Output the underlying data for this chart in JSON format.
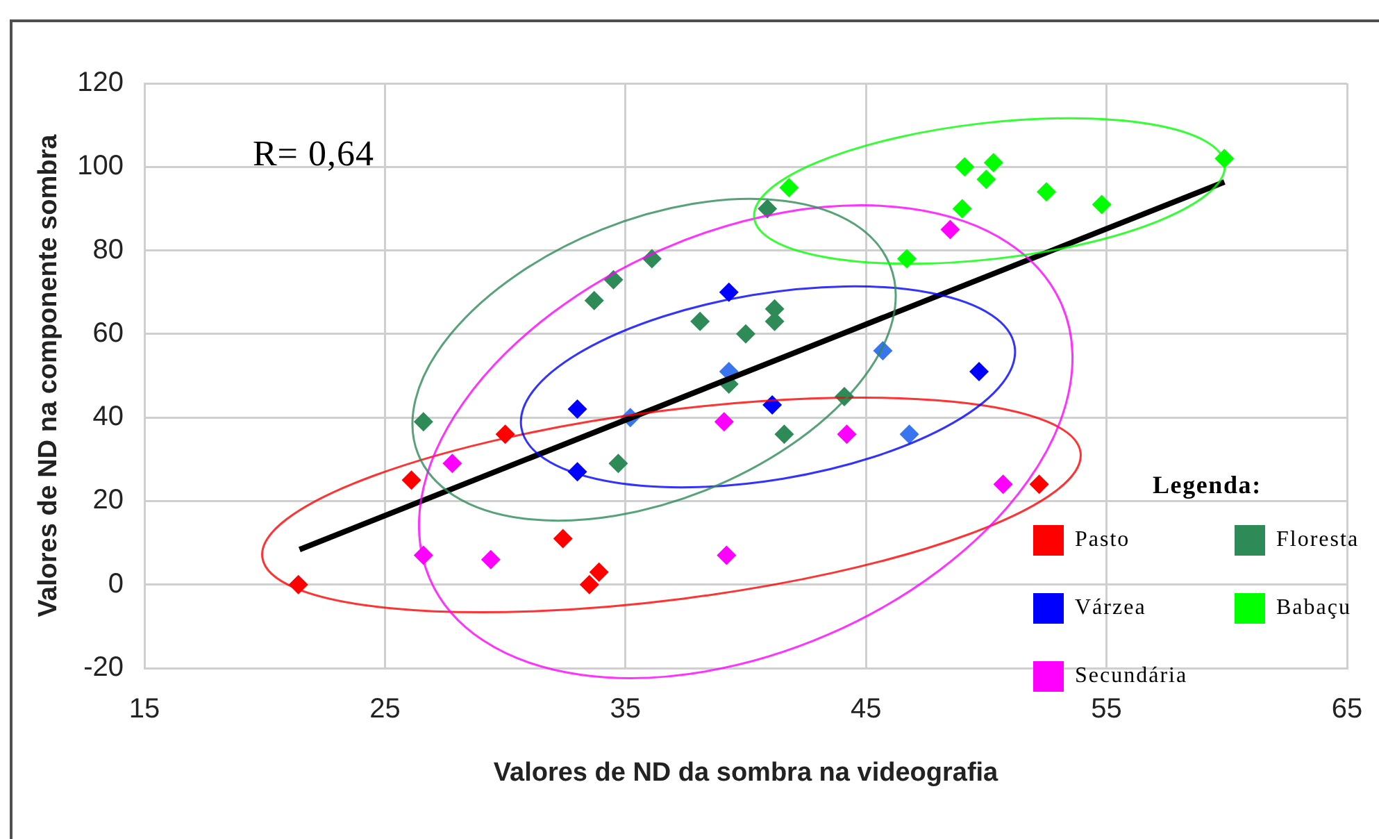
{
  "chart_data": {
    "type": "scatter",
    "xlabel": "Valores de ND da sombra na videografia",
    "ylabel": "Valores de ND na componente sombra",
    "xlim": [
      15,
      65
    ],
    "xticks": [
      15,
      25,
      35,
      45,
      55,
      65
    ],
    "ylim": [
      -20,
      120
    ],
    "yticks": [
      -20,
      0,
      20,
      40,
      60,
      80,
      100,
      120
    ],
    "grid": true,
    "legend": "bottom right",
    "legend_title": "Legenda:",
    "marker": "diamond",
    "annotations": [
      "R= 0,64"
    ],
    "series": [
      {
        "name": "Pasto",
        "color": "#ff0000",
        "x": [
          21.4,
          26.1,
          30.0,
          32.4,
          33.9,
          33.5,
          52.2
        ],
        "values": [
          0,
          25,
          36,
          11,
          3,
          0,
          24
        ]
      },
      {
        "name": "Várzea",
        "color": "#0000ff",
        "colors": [
          "#0000ff",
          "#0000ff",
          "#3a75f0",
          "#3a75f0",
          "#0000ff",
          "#0000ff",
          "#3a75f0",
          "#3a75f0",
          "#0000ff"
        ],
        "x": [
          33.0,
          33.0,
          35.2,
          39.3,
          39.3,
          41.1,
          45.7,
          46.8,
          49.7
        ],
        "values": [
          42,
          27,
          40,
          51,
          70,
          43,
          56,
          36,
          51
        ]
      },
      {
        "name": "Secundária",
        "color": "#ff00ff",
        "x": [
          27.8,
          26.6,
          29.4,
          39.1,
          39.2,
          44.2,
          48.5,
          50.7
        ],
        "values": [
          29,
          7,
          6,
          39,
          7,
          36,
          85,
          24
        ]
      },
      {
        "name": "Floresta",
        "color": "#2e8b57",
        "x": [
          26.6,
          33.7,
          34.5,
          36.1,
          40.9,
          38.1,
          40.0,
          41.2,
          41.2,
          39.3,
          34.7,
          41.6,
          44.1
        ],
        "values": [
          39,
          68,
          73,
          78,
          90,
          63,
          60,
          66,
          63,
          48,
          29,
          36,
          45
        ]
      },
      {
        "name": "Babaçu",
        "color": "#00ff00",
        "x": [
          41.8,
          46.7,
          49.1,
          50.3,
          50.0,
          49.0,
          52.5,
          54.8,
          59.9
        ],
        "values": [
          95,
          78,
          100,
          101,
          97,
          90,
          94,
          91,
          102
        ]
      },
      {
        "type": "line",
        "marker": "none",
        "color": "#000000",
        "x": [
          21.45,
          59.9
        ],
        "values": [
          8.4,
          96.4
        ]
      }
    ]
  }
}
